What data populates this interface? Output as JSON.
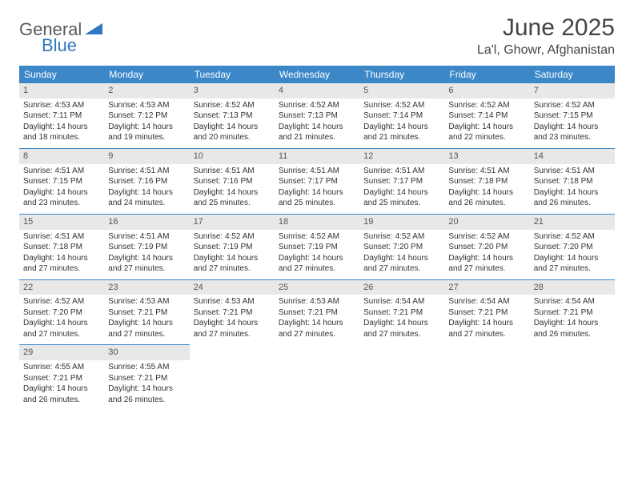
{
  "logo": {
    "general": "General",
    "blue": "Blue"
  },
  "title": "June 2025",
  "location": "La'l, Ghowr, Afghanistan",
  "colors": {
    "header_bg": "#3b87c8",
    "header_fg": "#ffffff",
    "daynum_bg": "#e8e8e8",
    "border": "#3b87c8",
    "logo_blue": "#2f78bd",
    "logo_gray": "#5a5a5a"
  },
  "weekdays": [
    "Sunday",
    "Monday",
    "Tuesday",
    "Wednesday",
    "Thursday",
    "Friday",
    "Saturday"
  ],
  "weeks": [
    [
      {
        "n": "1",
        "sr": "Sunrise: 4:53 AM",
        "ss": "Sunset: 7:11 PM",
        "d1": "Daylight: 14 hours",
        "d2": "and 18 minutes."
      },
      {
        "n": "2",
        "sr": "Sunrise: 4:53 AM",
        "ss": "Sunset: 7:12 PM",
        "d1": "Daylight: 14 hours",
        "d2": "and 19 minutes."
      },
      {
        "n": "3",
        "sr": "Sunrise: 4:52 AM",
        "ss": "Sunset: 7:13 PM",
        "d1": "Daylight: 14 hours",
        "d2": "and 20 minutes."
      },
      {
        "n": "4",
        "sr": "Sunrise: 4:52 AM",
        "ss": "Sunset: 7:13 PM",
        "d1": "Daylight: 14 hours",
        "d2": "and 21 minutes."
      },
      {
        "n": "5",
        "sr": "Sunrise: 4:52 AM",
        "ss": "Sunset: 7:14 PM",
        "d1": "Daylight: 14 hours",
        "d2": "and 21 minutes."
      },
      {
        "n": "6",
        "sr": "Sunrise: 4:52 AM",
        "ss": "Sunset: 7:14 PM",
        "d1": "Daylight: 14 hours",
        "d2": "and 22 minutes."
      },
      {
        "n": "7",
        "sr": "Sunrise: 4:52 AM",
        "ss": "Sunset: 7:15 PM",
        "d1": "Daylight: 14 hours",
        "d2": "and 23 minutes."
      }
    ],
    [
      {
        "n": "8",
        "sr": "Sunrise: 4:51 AM",
        "ss": "Sunset: 7:15 PM",
        "d1": "Daylight: 14 hours",
        "d2": "and 23 minutes."
      },
      {
        "n": "9",
        "sr": "Sunrise: 4:51 AM",
        "ss": "Sunset: 7:16 PM",
        "d1": "Daylight: 14 hours",
        "d2": "and 24 minutes."
      },
      {
        "n": "10",
        "sr": "Sunrise: 4:51 AM",
        "ss": "Sunset: 7:16 PM",
        "d1": "Daylight: 14 hours",
        "d2": "and 25 minutes."
      },
      {
        "n": "11",
        "sr": "Sunrise: 4:51 AM",
        "ss": "Sunset: 7:17 PM",
        "d1": "Daylight: 14 hours",
        "d2": "and 25 minutes."
      },
      {
        "n": "12",
        "sr": "Sunrise: 4:51 AM",
        "ss": "Sunset: 7:17 PM",
        "d1": "Daylight: 14 hours",
        "d2": "and 25 minutes."
      },
      {
        "n": "13",
        "sr": "Sunrise: 4:51 AM",
        "ss": "Sunset: 7:18 PM",
        "d1": "Daylight: 14 hours",
        "d2": "and 26 minutes."
      },
      {
        "n": "14",
        "sr": "Sunrise: 4:51 AM",
        "ss": "Sunset: 7:18 PM",
        "d1": "Daylight: 14 hours",
        "d2": "and 26 minutes."
      }
    ],
    [
      {
        "n": "15",
        "sr": "Sunrise: 4:51 AM",
        "ss": "Sunset: 7:18 PM",
        "d1": "Daylight: 14 hours",
        "d2": "and 27 minutes."
      },
      {
        "n": "16",
        "sr": "Sunrise: 4:51 AM",
        "ss": "Sunset: 7:19 PM",
        "d1": "Daylight: 14 hours",
        "d2": "and 27 minutes."
      },
      {
        "n": "17",
        "sr": "Sunrise: 4:52 AM",
        "ss": "Sunset: 7:19 PM",
        "d1": "Daylight: 14 hours",
        "d2": "and 27 minutes."
      },
      {
        "n": "18",
        "sr": "Sunrise: 4:52 AM",
        "ss": "Sunset: 7:19 PM",
        "d1": "Daylight: 14 hours",
        "d2": "and 27 minutes."
      },
      {
        "n": "19",
        "sr": "Sunrise: 4:52 AM",
        "ss": "Sunset: 7:20 PM",
        "d1": "Daylight: 14 hours",
        "d2": "and 27 minutes."
      },
      {
        "n": "20",
        "sr": "Sunrise: 4:52 AM",
        "ss": "Sunset: 7:20 PM",
        "d1": "Daylight: 14 hours",
        "d2": "and 27 minutes."
      },
      {
        "n": "21",
        "sr": "Sunrise: 4:52 AM",
        "ss": "Sunset: 7:20 PM",
        "d1": "Daylight: 14 hours",
        "d2": "and 27 minutes."
      }
    ],
    [
      {
        "n": "22",
        "sr": "Sunrise: 4:52 AM",
        "ss": "Sunset: 7:20 PM",
        "d1": "Daylight: 14 hours",
        "d2": "and 27 minutes."
      },
      {
        "n": "23",
        "sr": "Sunrise: 4:53 AM",
        "ss": "Sunset: 7:21 PM",
        "d1": "Daylight: 14 hours",
        "d2": "and 27 minutes."
      },
      {
        "n": "24",
        "sr": "Sunrise: 4:53 AM",
        "ss": "Sunset: 7:21 PM",
        "d1": "Daylight: 14 hours",
        "d2": "and 27 minutes."
      },
      {
        "n": "25",
        "sr": "Sunrise: 4:53 AM",
        "ss": "Sunset: 7:21 PM",
        "d1": "Daylight: 14 hours",
        "d2": "and 27 minutes."
      },
      {
        "n": "26",
        "sr": "Sunrise: 4:54 AM",
        "ss": "Sunset: 7:21 PM",
        "d1": "Daylight: 14 hours",
        "d2": "and 27 minutes."
      },
      {
        "n": "27",
        "sr": "Sunrise: 4:54 AM",
        "ss": "Sunset: 7:21 PM",
        "d1": "Daylight: 14 hours",
        "d2": "and 27 minutes."
      },
      {
        "n": "28",
        "sr": "Sunrise: 4:54 AM",
        "ss": "Sunset: 7:21 PM",
        "d1": "Daylight: 14 hours",
        "d2": "and 26 minutes."
      }
    ],
    [
      {
        "n": "29",
        "sr": "Sunrise: 4:55 AM",
        "ss": "Sunset: 7:21 PM",
        "d1": "Daylight: 14 hours",
        "d2": "and 26 minutes."
      },
      {
        "n": "30",
        "sr": "Sunrise: 4:55 AM",
        "ss": "Sunset: 7:21 PM",
        "d1": "Daylight: 14 hours",
        "d2": "and 26 minutes."
      },
      {
        "empty": true
      },
      {
        "empty": true
      },
      {
        "empty": true
      },
      {
        "empty": true
      },
      {
        "empty": true
      }
    ]
  ]
}
